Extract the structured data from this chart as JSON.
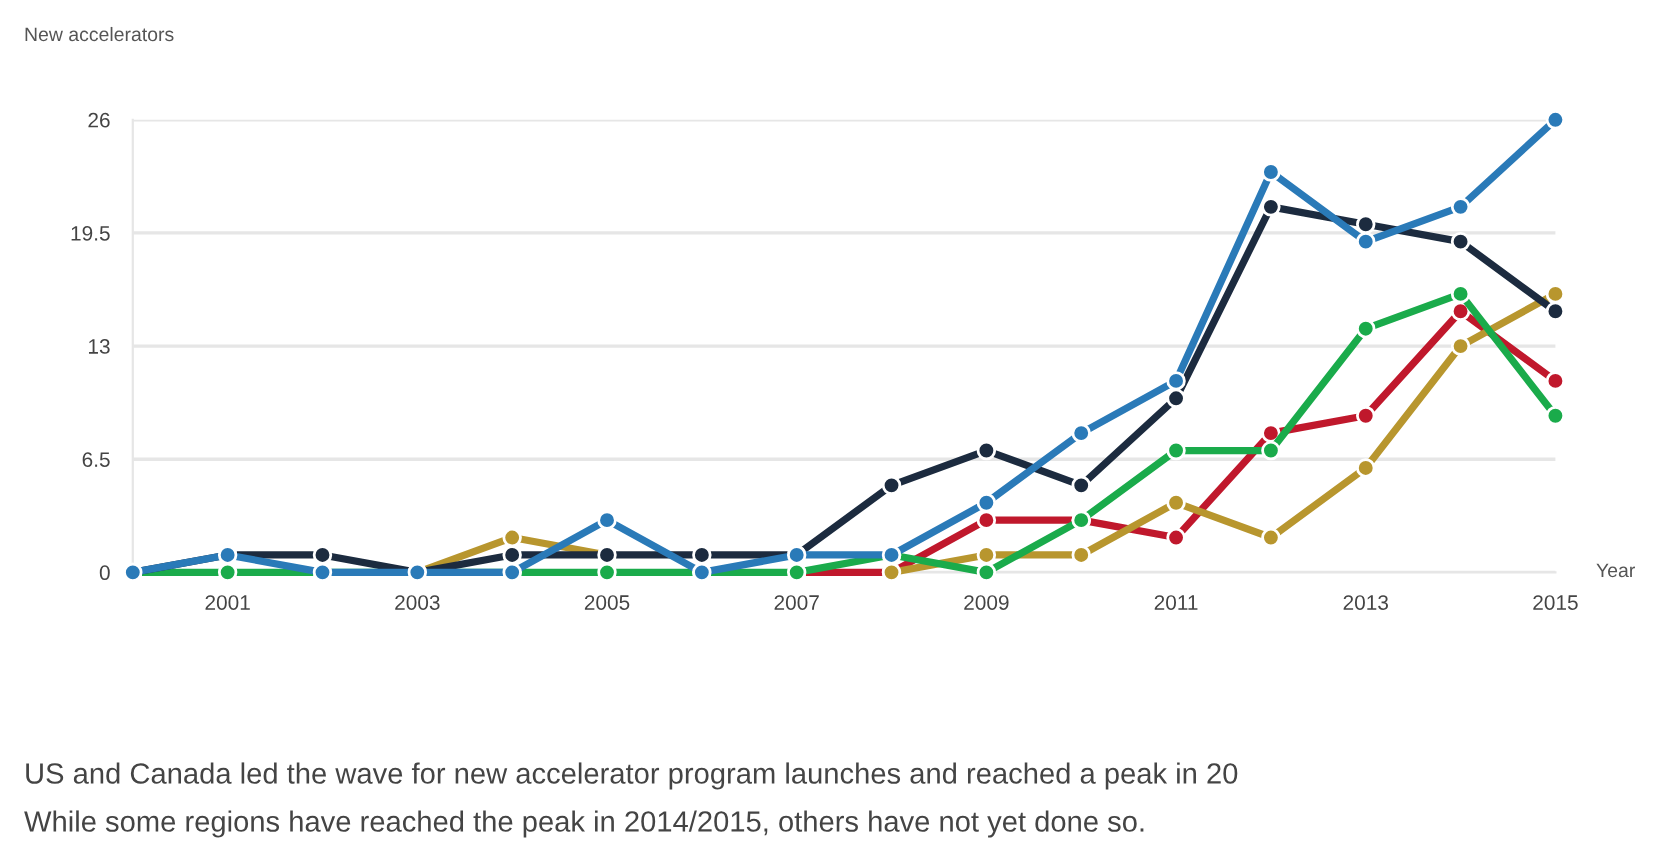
{
  "chart_data": {
    "type": "line",
    "ylabel": "New accelerators",
    "xlabel": "Year",
    "x": [
      2000,
      2001,
      2002,
      2003,
      2004,
      2005,
      2006,
      2007,
      2008,
      2009,
      2010,
      2011,
      2012,
      2013,
      2014,
      2015
    ],
    "series": [
      {
        "color": "#c0182c",
        "values": [
          null,
          null,
          null,
          null,
          null,
          null,
          null,
          0,
          0,
          3,
          3,
          2,
          8,
          9,
          15,
          11
        ]
      },
      {
        "color": "#b8962e",
        "values": [
          null,
          null,
          null,
          0,
          2,
          1,
          null,
          null,
          0,
          1,
          1,
          4,
          2,
          6,
          13,
          16
        ]
      },
      {
        "color": "#1aab4b",
        "values": [
          0,
          0,
          0,
          0,
          0,
          0,
          0,
          0,
          1,
          0,
          3,
          7,
          7,
          14,
          16,
          9
        ]
      },
      {
        "color": "#1c2b3f",
        "values": [
          0,
          1,
          1,
          0,
          1,
          1,
          1,
          1,
          5,
          7,
          5,
          10,
          21,
          20,
          19,
          15
        ]
      },
      {
        "color": "#2a7ab8",
        "values": [
          0,
          1,
          0,
          0,
          0,
          3,
          0,
          1,
          1,
          4,
          8,
          11,
          23,
          19,
          21,
          26
        ]
      }
    ],
    "xlim": [
      2000,
      2015
    ],
    "xticks": [
      2001,
      2003,
      2005,
      2007,
      2009,
      2011,
      2013,
      2015
    ],
    "ylim": [
      0,
      26
    ],
    "yticks": [
      0,
      6.5,
      13,
      19.5,
      26
    ],
    "grid": "y",
    "legend": false,
    "marker": "circle",
    "line_style": "solid",
    "annotations": [
      "US and Canada led the wave for new accelerator program launches and reached a peak in 20",
      "While some regions have reached the peak in 2014/2015, others have not yet done so."
    ]
  }
}
